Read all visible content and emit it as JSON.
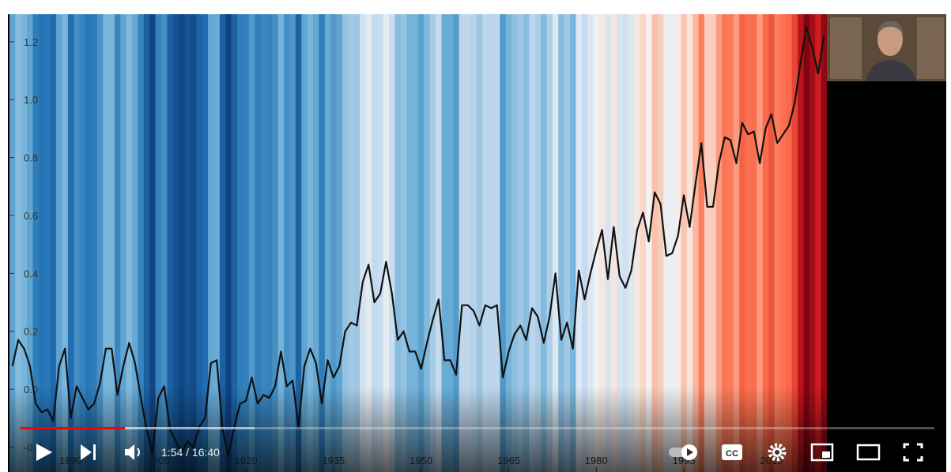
{
  "chart_data": {
    "type": "line",
    "stripes": true,
    "x": [
      1880,
      1881,
      1882,
      1883,
      1884,
      1885,
      1886,
      1887,
      1888,
      1889,
      1890,
      1891,
      1892,
      1893,
      1894,
      1895,
      1896,
      1897,
      1898,
      1899,
      1900,
      1901,
      1902,
      1903,
      1904,
      1905,
      1906,
      1907,
      1908,
      1909,
      1910,
      1911,
      1912,
      1913,
      1914,
      1915,
      1916,
      1917,
      1918,
      1919,
      1920,
      1921,
      1922,
      1923,
      1924,
      1925,
      1926,
      1927,
      1928,
      1929,
      1930,
      1931,
      1932,
      1933,
      1934,
      1935,
      1936,
      1937,
      1938,
      1939,
      1940,
      1941,
      1942,
      1943,
      1944,
      1945,
      1946,
      1947,
      1948,
      1949,
      1950,
      1951,
      1952,
      1953,
      1954,
      1955,
      1956,
      1957,
      1958,
      1959,
      1960,
      1961,
      1962,
      1963,
      1964,
      1965,
      1966,
      1967,
      1968,
      1969,
      1970,
      1971,
      1972,
      1973,
      1974,
      1975,
      1976,
      1977,
      1978,
      1979,
      1980,
      1981,
      1982,
      1983,
      1984,
      1985,
      1986,
      1987,
      1988,
      1989,
      1990,
      1991,
      1992,
      1993,
      1994,
      1995,
      1996,
      1997,
      1998,
      1999,
      2000,
      2001,
      2002,
      2003,
      2004,
      2005,
      2006,
      2007,
      2008,
      2009,
      2010,
      2011,
      2012,
      2013,
      2014,
      2015,
      2016,
      2017,
      2018,
      2019
    ],
    "series": [
      {
        "color": "#111111",
        "values": [
          0.08,
          0.17,
          0.14,
          0.08,
          -0.05,
          -0.08,
          -0.07,
          -0.11,
          0.08,
          0.14,
          -0.1,
          0.01,
          -0.03,
          -0.07,
          -0.05,
          0.02,
          0.14,
          0.14,
          -0.02,
          0.08,
          0.16,
          0.09,
          -0.03,
          -0.14,
          -0.22,
          -0.03,
          0.01,
          -0.14,
          -0.18,
          -0.22,
          -0.18,
          -0.2,
          -0.13,
          -0.1,
          0.09,
          0.1,
          -0.14,
          -0.23,
          -0.13,
          -0.05,
          -0.04,
          0.04,
          -0.05,
          -0.02,
          -0.03,
          0.01,
          0.13,
          0.01,
          0.03,
          -0.13,
          0.08,
          0.14,
          0.09,
          -0.05,
          0.1,
          0.04,
          0.08,
          0.2,
          0.23,
          0.22,
          0.37,
          0.43,
          0.3,
          0.33,
          0.44,
          0.33,
          0.17,
          0.2,
          0.13,
          0.13,
          0.07,
          0.16,
          0.24,
          0.31,
          0.1,
          0.1,
          0.05,
          0.29,
          0.29,
          0.27,
          0.22,
          0.29,
          0.28,
          0.29,
          0.04,
          0.13,
          0.19,
          0.22,
          0.17,
          0.28,
          0.25,
          0.16,
          0.25,
          0.4,
          0.17,
          0.23,
          0.14,
          0.41,
          0.31,
          0.4,
          0.48,
          0.55,
          0.38,
          0.56,
          0.39,
          0.35,
          0.41,
          0.55,
          0.61,
          0.51,
          0.68,
          0.64,
          0.46,
          0.47,
          0.53,
          0.67,
          0.56,
          0.71,
          0.85,
          0.63,
          0.63,
          0.78,
          0.87,
          0.86,
          0.78,
          0.92,
          0.88,
          0.89,
          0.78,
          0.9,
          0.95,
          0.85,
          0.88,
          0.91,
          0.99,
          1.13,
          1.25,
          1.18,
          1.09,
          1.22
        ]
      }
    ],
    "colormap": [
      "#08306b",
      "#2171b5",
      "#6baed6",
      "#c6dbef",
      "#f4f4f4",
      "#fcbba1",
      "#fb6a4a",
      "#cb181d",
      "#67000d"
    ],
    "xlim": [
      1879.5,
      2019.5
    ],
    "xticks": [
      1890,
      1905,
      1920,
      1935,
      1950,
      1965,
      1980,
      1995,
      2010
    ],
    "ylim": [
      -0.286,
      1.295
    ],
    "yticks": [
      {
        "value": -0.2,
        "label": "-0.2"
      },
      {
        "value": 0,
        "label": "0.0"
      },
      0.2,
      0.4,
      0.6,
      0.8,
      {
        "value": 1,
        "label": "1.0"
      },
      1.2
    ]
  },
  "player": {
    "time_display": "1:54 / 16:40",
    "captions_icon": "CC"
  }
}
